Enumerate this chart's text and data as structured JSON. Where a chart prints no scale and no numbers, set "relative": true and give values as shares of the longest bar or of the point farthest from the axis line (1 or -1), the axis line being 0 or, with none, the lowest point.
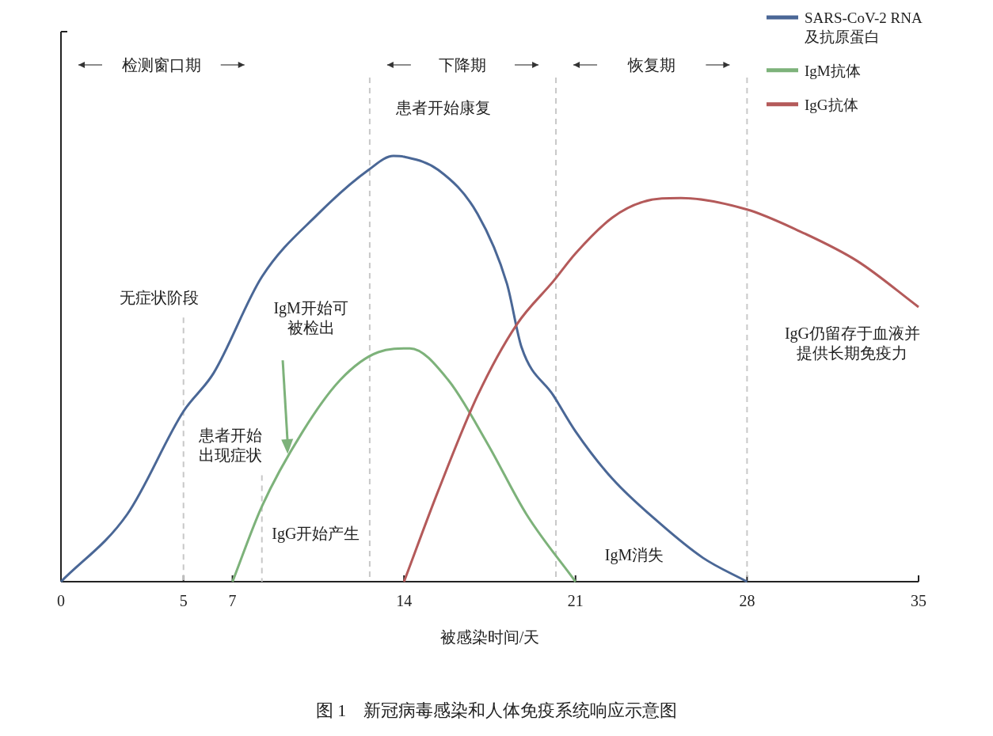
{
  "chart_data": {
    "type": "line",
    "relative": true,
    "xlabel": "被感染时间/天",
    "xlim": [
      0,
      35
    ],
    "xticks": [
      0,
      5,
      7,
      14,
      21,
      28,
      35
    ],
    "legend": "top right",
    "series": [
      {
        "name": "SARS-CoV-2 RNA\n及抗原蛋白",
        "color": "#4a6796",
        "x": [
          0,
          2.7,
          5,
          6.23,
          8.2,
          10.5,
          12.55,
          13.57,
          14,
          15.4,
          17,
          18.2,
          18.8,
          20.1,
          21,
          22.5,
          24.4,
          26.2,
          28
        ],
        "values": [
          0,
          0.158,
          0.4,
          0.49,
          0.716,
          0.864,
          0.967,
          1,
          0.998,
          0.967,
          0.864,
          0.7,
          0.55,
          0.437,
          0.353,
          0.242,
          0.139,
          0.056,
          0
        ]
      },
      {
        "name": "IgM抗体",
        "color": "#7db27a",
        "x": [
          7,
          8.2,
          9.87,
          11.4,
          12.95,
          14.24,
          15.8,
          17.4,
          19,
          21
        ],
        "values": [
          0,
          0.177,
          0.353,
          0.474,
          0.539,
          0.548,
          0.474,
          0.325,
          0.158,
          0
        ]
      },
      {
        "name": "IgG抗体",
        "color": "#b45a5a",
        "x": [
          14,
          15.4,
          17,
          18.6,
          20.1,
          21,
          22.5,
          23.75,
          25.3,
          28,
          30,
          32.5,
          35
        ],
        "values": [
          0,
          0.214,
          0.437,
          0.604,
          0.706,
          0.771,
          0.855,
          0.892,
          0.901,
          0.874,
          0.827,
          0.753,
          0.645
        ]
      }
    ],
    "ref_lines": [
      {
        "axis": "x",
        "value": 5
      },
      {
        "axis": "x",
        "value": 8.2
      },
      {
        "axis": "x",
        "value": 12.6
      },
      {
        "axis": "x",
        "value": 20.2
      },
      {
        "axis": "x",
        "value": 28
      }
    ],
    "annotations": [
      "检测窗口期",
      "下降期",
      "恢复期",
      "无症状阶段",
      "患者开始出现症状",
      "IgM开始可被检出",
      "患者开始康复",
      "IgG开始产生",
      "IgM消失",
      "IgG仍留存于血液并提供长期免疫力",
      "图 1　新冠病毒感染和人体免疫系统响应示意图"
    ]
  }
}
